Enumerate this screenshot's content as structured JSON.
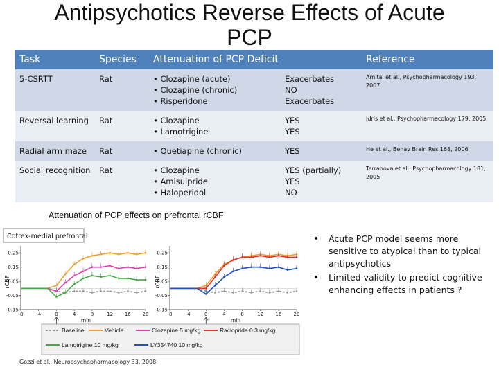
{
  "title_line1": "Antipsychotics Reverse Effects of Acute",
  "title_line2": "PCP",
  "table": {
    "headers": [
      "Task",
      "Species",
      "Attenuation of PCP Deficit",
      "Reference"
    ],
    "rows": [
      {
        "task": "5-CSRTT",
        "species": "Rat",
        "drugs": [
          "• Clozapine (acute)",
          "• Clozapine (chronic)",
          "• Risperidone"
        ],
        "effects": [
          "Exacerbates",
          "NO",
          "Exacerbates"
        ],
        "reference": "Amitai et al., Psychopharmacology 193, 2007"
      },
      {
        "task": "Reversal learning",
        "species": "Rat",
        "drugs": [
          "• Clozapine",
          "• Lamotrigine"
        ],
        "effects": [
          "YES",
          "YES"
        ],
        "reference": "Idris et al., Psychopharmacology 179, 2005"
      },
      {
        "task": "Radial arm maze",
        "species": "Rat",
        "drugs": [
          "• Quetiapine (chronic)"
        ],
        "effects": [
          "YES"
        ],
        "reference": "He et al., Behav Brain Res 168, 2006"
      },
      {
        "task": "Social recognition",
        "species": "Rat",
        "drugs": [
          "• Clozapine",
          "• Amisulpride",
          "• Haloperidol"
        ],
        "effects": [
          "YES (partially)",
          "YES",
          "NO"
        ],
        "reference": "Terranova et al., Psychopharmacology 181, 2005"
      }
    ]
  },
  "subtitle": "Attenuation of PCP effects on prefrontal rCBF",
  "bullets": [
    "Acute PCP model seems more sensitive to atypical than to typical antipsychotics",
    "Limited validity to predict cognitive enhancing effects in patients ?"
  ],
  "citation": "Gozzi et al., Neuropsychopharmacology 33, 2008",
  "colors": {
    "header": "#4f81bd",
    "row_dark": "#d0d8e8",
    "row_light": "#e9edf4"
  },
  "chart_data": [
    {
      "type": "line",
      "panel_label": "Cotrex-medial prefrontal",
      "ylabel": "rCBF",
      "xlabel": "min",
      "x_ticks": [
        "-8",
        "-4",
        "0",
        "4",
        "8",
        "12",
        "16",
        "20"
      ],
      "y_ticks": [
        "0.25",
        "0.15",
        "0.05",
        "-0.05",
        "-0.15"
      ],
      "xlim": [
        -8,
        20
      ],
      "ylim": [
        -0.15,
        0.3
      ],
      "x": [
        -8,
        -6,
        -4,
        -2,
        0,
        2,
        4,
        6,
        8,
        10,
        12,
        14,
        16,
        18,
        20
      ],
      "series": [
        {
          "name": "Baseline",
          "color": "#999999",
          "dash": "3,2",
          "values": [
            0,
            0,
            0,
            0,
            -0.02,
            -0.03,
            -0.02,
            -0.02,
            -0.03,
            -0.02,
            -0.02,
            -0.03,
            -0.02,
            -0.03,
            -0.02
          ]
        },
        {
          "name": "Vehicle",
          "color": "#f0a030",
          "dash": "",
          "values": [
            0,
            0,
            0,
            0,
            0.02,
            0.1,
            0.17,
            0.21,
            0.23,
            0.24,
            0.25,
            0.24,
            0.25,
            0.24,
            0.25
          ]
        },
        {
          "name": "Clozapine 5 mg/kg",
          "color": "#e040b0",
          "dash": "",
          "values": [
            0,
            0,
            0,
            0,
            -0.02,
            0.04,
            0.09,
            0.12,
            0.15,
            0.15,
            0.16,
            0.14,
            0.15,
            0.14,
            0.15
          ]
        },
        {
          "name": "Lamotrigine 10 mg/kg",
          "color": "#44aa44",
          "dash": "",
          "values": [
            0,
            0,
            0,
            0,
            -0.06,
            -0.03,
            0.03,
            0.07,
            0.09,
            0.08,
            0.09,
            0.07,
            0.07,
            0.06,
            0.06
          ]
        }
      ]
    },
    {
      "type": "line",
      "ylabel": "rCBF",
      "xlabel": "min",
      "x_ticks": [
        "-8",
        "-4",
        "0",
        "4",
        "8",
        "12",
        "16",
        "20"
      ],
      "y_ticks": [
        "0.25",
        "0.15",
        "0.05",
        "-0.05",
        "-0.15"
      ],
      "xlim": [
        -8,
        20
      ],
      "ylim": [
        -0.15,
        0.3
      ],
      "x": [
        -8,
        -6,
        -4,
        -2,
        0,
        2,
        4,
        6,
        8,
        10,
        12,
        14,
        16,
        18,
        20
      ],
      "series": [
        {
          "name": "Baseline",
          "color": "#999999",
          "dash": "3,2",
          "values": [
            0,
            0,
            0,
            0,
            -0.02,
            -0.03,
            -0.02,
            -0.03,
            -0.02,
            -0.03,
            -0.02,
            -0.03,
            -0.02,
            -0.03,
            -0.02
          ]
        },
        {
          "name": "Vehicle",
          "color": "#f0a030",
          "dash": "",
          "values": [
            0,
            0,
            0,
            0,
            0.02,
            0.1,
            0.17,
            0.2,
            0.22,
            0.23,
            0.24,
            0.23,
            0.24,
            0.23,
            0.24
          ]
        },
        {
          "name": "Raclopride 0.3 mg/kg",
          "color": "#e03030",
          "dash": "",
          "values": [
            0,
            0,
            0,
            0,
            0,
            0.08,
            0.16,
            0.2,
            0.22,
            0.22,
            0.23,
            0.22,
            0.23,
            0.22,
            0.22
          ]
        },
        {
          "name": "LY354740 10 mg/kg",
          "color": "#2050c0",
          "dash": "",
          "values": [
            0,
            0,
            0,
            0,
            -0.04,
            0.02,
            0.08,
            0.12,
            0.14,
            0.15,
            0.15,
            0.14,
            0.15,
            0.13,
            0.14
          ]
        }
      ]
    }
  ]
}
